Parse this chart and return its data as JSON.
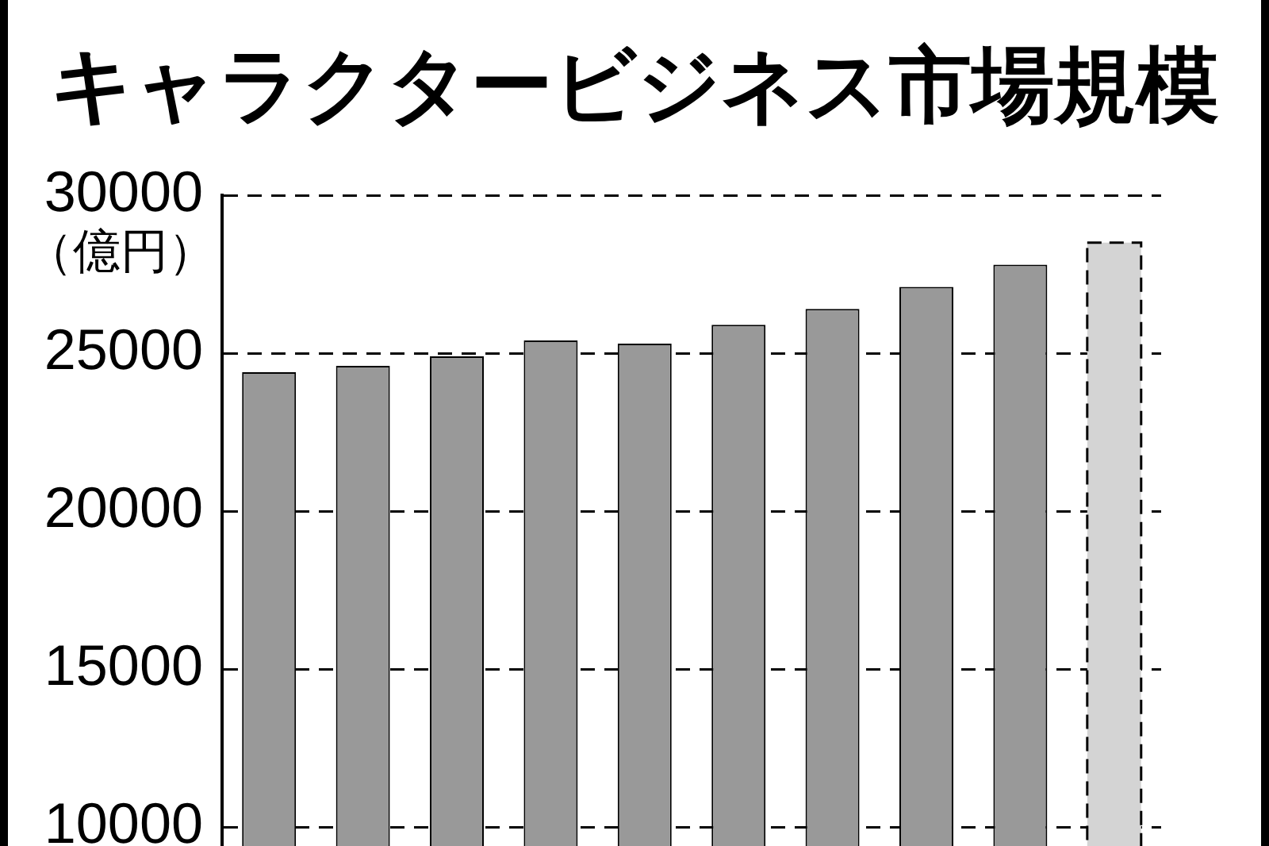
{
  "chart_data": {
    "type": "bar",
    "title": "キャラクタービジネス市場規模",
    "ylabel": "（億円）",
    "categories": [
      null,
      null,
      null,
      null,
      null,
      null,
      null,
      null,
      null,
      null
    ],
    "series": [
      {
        "color": "#999999",
        "values": [
          24400,
          24600,
          24900,
          25400,
          25300,
          25900,
          26400,
          27100,
          27800,
          null
        ]
      },
      {
        "color": "#d4d4d4",
        "line_style": "dashed",
        "values": [
          null,
          null,
          null,
          null,
          null,
          null,
          null,
          null,
          null,
          28500
        ]
      }
    ],
    "ylim": [
      9400,
      30000
    ],
    "yticks": [
      10000,
      15000,
      20000,
      25000,
      30000
    ],
    "grid": "y"
  }
}
